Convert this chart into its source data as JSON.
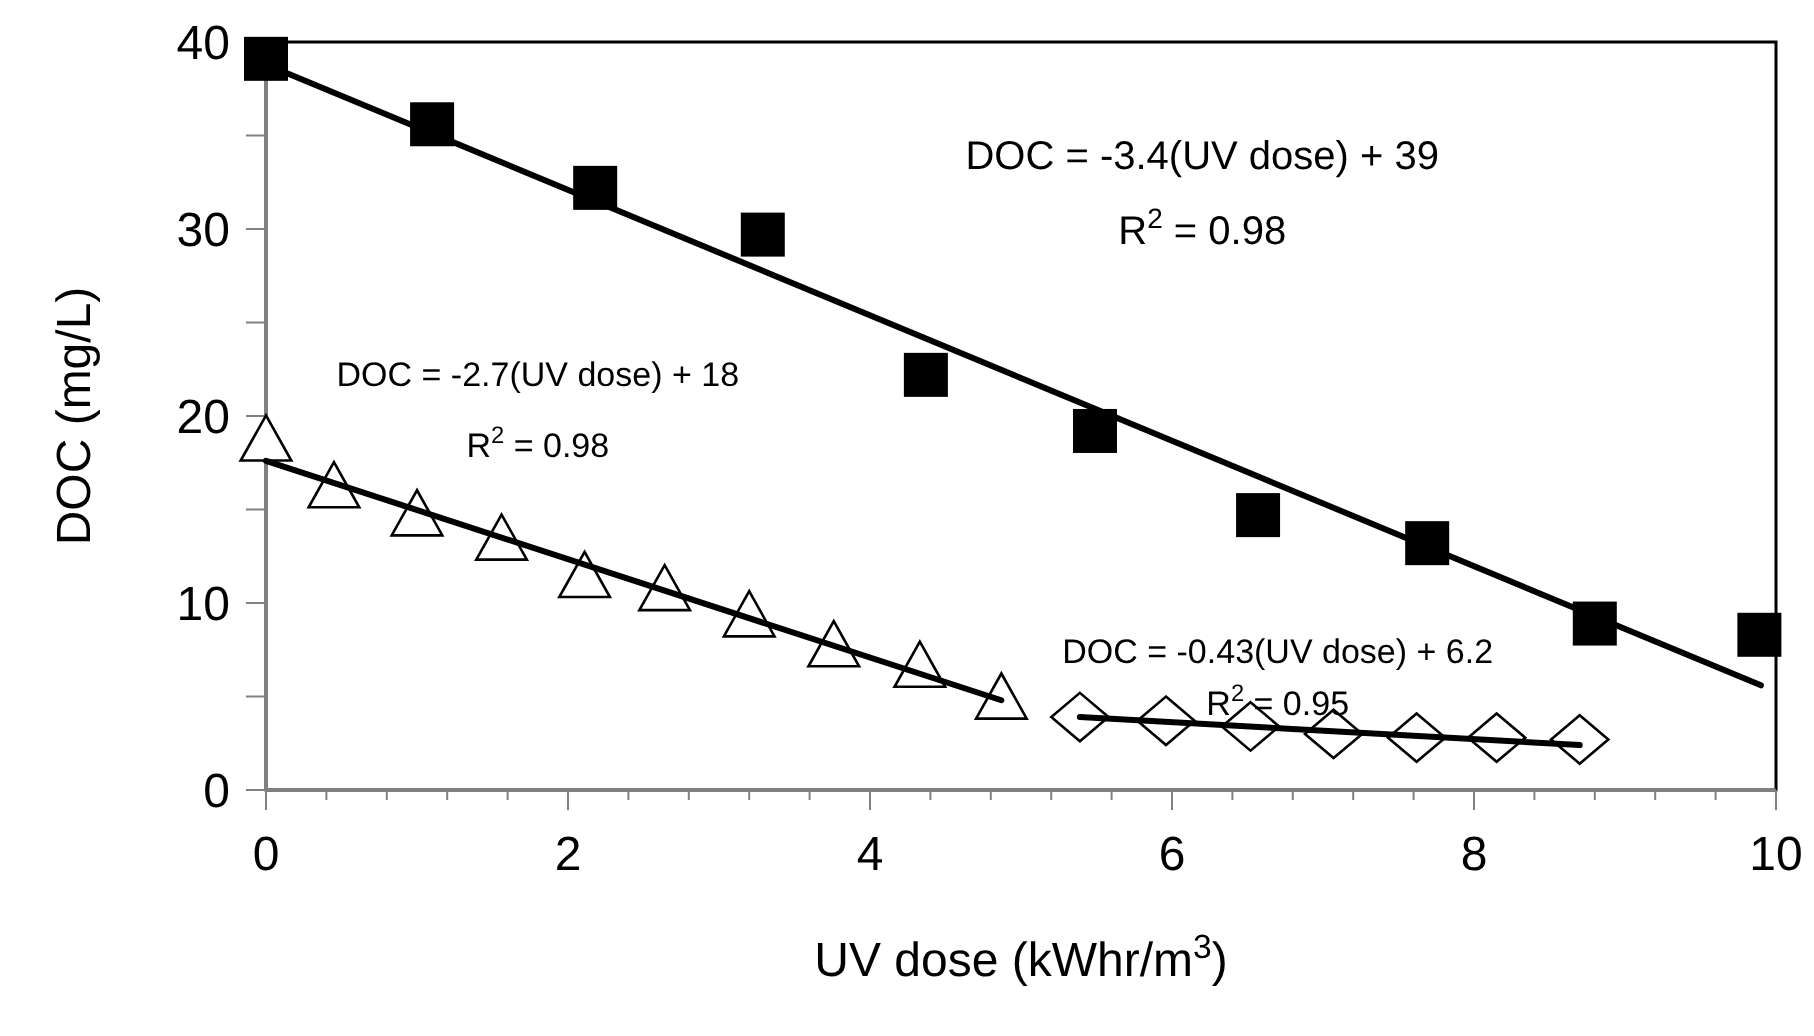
{
  "chart_data": {
    "type": "scatter",
    "xlabel": "UV dose (kWhr/m$^{3}$)",
    "ylabel": "DOC (mg/L)",
    "xlim": [
      0,
      10
    ],
    "ylim": [
      0,
      40
    ],
    "xticks": [
      0,
      {
        "value": 0.4,
        "label": null
      },
      {
        "value": 0.8,
        "label": null
      },
      {
        "value": 1.2,
        "label": null
      },
      {
        "value": 1.6,
        "label": null
      },
      2,
      {
        "value": 2.4,
        "label": null
      },
      {
        "value": 2.8,
        "label": null
      },
      {
        "value": 3.2,
        "label": null
      },
      {
        "value": 3.6,
        "label": null
      },
      4,
      {
        "value": 4.4,
        "label": null
      },
      {
        "value": 4.8,
        "label": null
      },
      {
        "value": 5.2,
        "label": null
      },
      {
        "value": 5.6,
        "label": null
      },
      6,
      {
        "value": 6.4,
        "label": null
      },
      {
        "value": 6.8,
        "label": null
      },
      {
        "value": 7.2,
        "label": null
      },
      {
        "value": 7.6,
        "label": null
      },
      8,
      {
        "value": 8.4,
        "label": null
      },
      {
        "value": 8.8,
        "label": null
      },
      {
        "value": 9.2,
        "label": null
      },
      {
        "value": 9.6,
        "label": null
      },
      10
    ],
    "yticks": [
      0,
      {
        "value": 5,
        "label": null
      },
      10,
      {
        "value": 15,
        "label": null
      },
      20,
      {
        "value": 25,
        "label": null
      },
      30,
      {
        "value": 35,
        "label": null
      },
      40
    ],
    "grid": false,
    "series": [
      {
        "marker": "square",
        "color": "#000000",
        "x": [
          0,
          1.1,
          2.18,
          3.29,
          4.37,
          5.49,
          6.57,
          7.69,
          8.8,
          9.89
        ],
        "values": [
          39.1,
          35.6,
          32.2,
          29.7,
          22.2,
          19.2,
          14.7,
          13.2,
          8.9,
          8.3
        ]
      },
      {
        "marker": "triangle",
        "color": "#000000",
        "x": [
          0,
          0.45,
          1.0,
          1.56,
          2.11,
          2.64,
          3.2,
          3.76,
          4.33,
          4.87
        ],
        "values": [
          18.5,
          16.0,
          14.5,
          13.2,
          11.2,
          10.5,
          9.1,
          7.5,
          6.4,
          4.7
        ]
      },
      {
        "marker": "diamond",
        "color": "#000000",
        "x": [
          5.39,
          5.96,
          6.52,
          7.07,
          7.62,
          8.15,
          8.7
        ],
        "values": [
          3.9,
          3.7,
          3.4,
          3.0,
          2.8,
          2.8,
          2.7
        ]
      },
      {
        "type": "line",
        "marker": "none",
        "color": "#000000",
        "x": [
          0,
          9.9
        ],
        "values": [
          38.8,
          5.6
        ]
      },
      {
        "type": "line",
        "marker": "none",
        "color": "#000000",
        "x": [
          0,
          4.87
        ],
        "values": [
          17.6,
          4.8
        ]
      },
      {
        "type": "line",
        "marker": "none",
        "color": "#000000",
        "x": [
          5.39,
          8.7
        ],
        "values": [
          3.9,
          2.4
        ]
      }
    ],
    "annotations": [
      "DOC = -3.4(UV dose) + 39",
      "R$^{2}$ = 0.98",
      "DOC = -2.7(UV dose) + 18",
      "R$^{2}$ = 0.98",
      "DOC = -0.43(UV dose) + 6.2",
      "R$^{2}$ = 0.95"
    ]
  }
}
